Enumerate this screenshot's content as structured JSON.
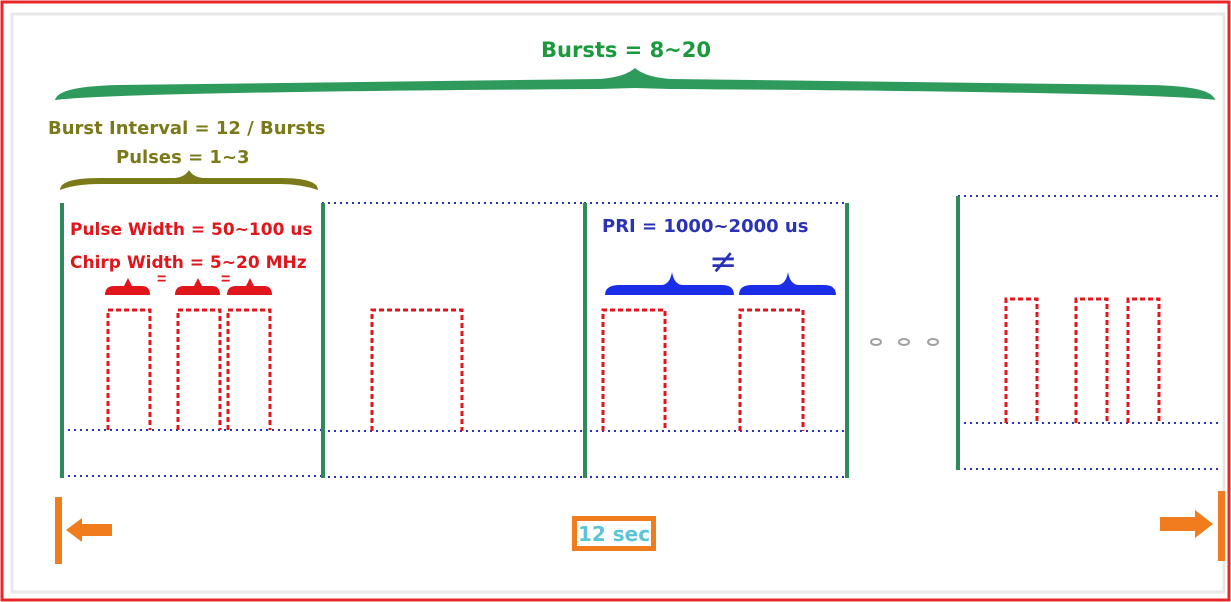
{
  "labels": {
    "bursts": "Bursts = 8~20",
    "burst_interval": "Burst Interval = 12 / Bursts",
    "pulses": "Pulses = 1~3",
    "pulse_width": "Pulse Width = 50~100 us",
    "chirp_width": "Chirp Width = 5~20 MHz",
    "equal_sign": "=",
    "pri": "PRI = 1000~2000 us",
    "not_equal": "≠",
    "duration": "12 sec"
  },
  "colors": {
    "frame_border": "#e8262a",
    "bursts_brace": "#2e9a5c",
    "interval_brace": "#7a7a1a",
    "pulse": "#e0161c",
    "pri": "#1a2ee8",
    "baseline": "#2b33b5",
    "divider": "#2e8a5a",
    "arrow": "#f07c1e",
    "duration_text": "#5bc4d6"
  },
  "icons": [
    "arrow-left-icon",
    "arrow-right-icon",
    "ellipsis-icon"
  ]
}
